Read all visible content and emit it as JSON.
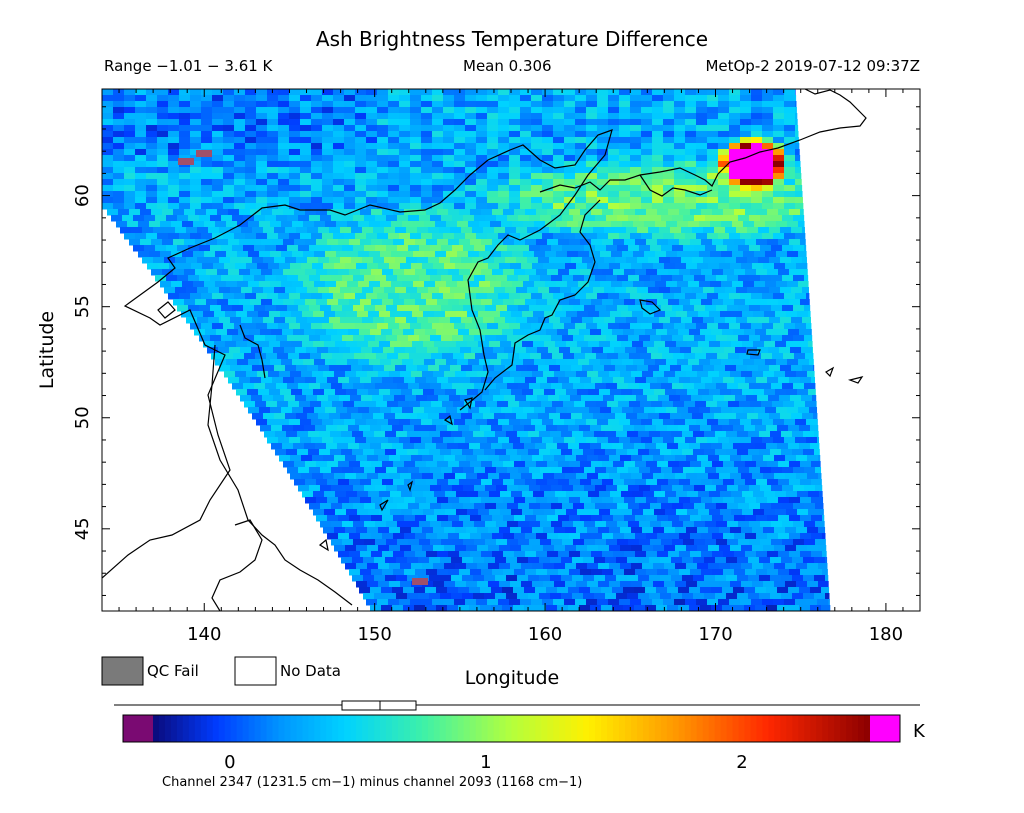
{
  "title": "Ash Brightness Temperature Difference",
  "header": {
    "range": "Range −1.01 − 3.61 K",
    "mean": "Mean 0.306",
    "satellite_time": "MetOp-2 2019-07-12 09:37Z"
  },
  "legend": {
    "qc_fail": "QC Fail",
    "no_data": "No Data"
  },
  "colorbar": {
    "unit": "K",
    "ticks": [
      "0",
      "1",
      "2"
    ],
    "caption": "Channel 2347 (1231.5 cm−1) minus channel 2093 (1168 cm−1)",
    "colors": [
      "#7a0a72",
      "#0a0a7a",
      "#0020c8",
      "#0050ff",
      "#0090ff",
      "#00c8ff",
      "#20e0e0",
      "#60f0a0",
      "#b0ff40",
      "#f0ff00",
      "#ffc000",
      "#ff7800",
      "#ff2000",
      "#d00000",
      "#7a0000",
      "#ff00ff"
    ]
  },
  "chart_data": {
    "type": "heatmap",
    "title": "Ash Brightness Temperature Difference",
    "xlabel": "Longitude",
    "ylabel": "Latitude",
    "xlim": [
      134,
      182
    ],
    "ylim": [
      41.3,
      64.8
    ],
    "xticks": [
      "140",
      "150",
      "160",
      "170",
      "180"
    ],
    "xtick_values": [
      140,
      150,
      160,
      170,
      180
    ],
    "yticks": [
      "45",
      "50",
      "55",
      "60"
    ],
    "ytick_values": [
      45,
      50,
      55,
      60
    ],
    "value_range_K": [
      -1.01,
      3.61
    ],
    "mean_K": 0.306,
    "colorbar_range_K": [
      -0.3,
      2.5
    ],
    "features": [
      {
        "name": "ash hotspot",
        "lon": [
          170.3,
          173.5
        ],
        "lat": [
          60.6,
          62.5
        ],
        "value_K": 3.0
      },
      {
        "name": "warm band near Kamchatka coast",
        "lon": [
          158,
          176
        ],
        "lat": [
          58.5,
          61.5
        ],
        "value_K": 1.0
      },
      {
        "name": "Sea of Okhotsk warm patch",
        "lon": [
          146,
          158
        ],
        "lat": [
          53,
          59
        ],
        "value_K": 0.8
      }
    ]
  }
}
